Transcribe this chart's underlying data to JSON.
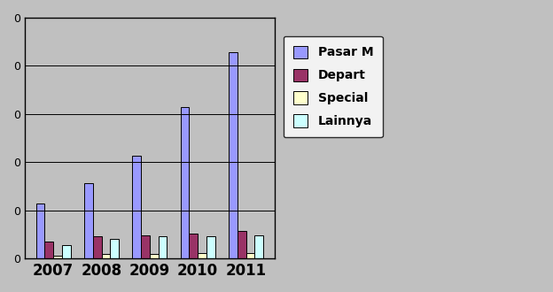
{
  "years": [
    "2007",
    "2008",
    "2009",
    "2010",
    "2011"
  ],
  "series": {
    "Pasar M": [
      40,
      55,
      75,
      110,
      150
    ],
    "Depart": [
      12,
      16,
      17,
      18,
      20
    ],
    "Special": [
      2,
      3,
      3,
      4,
      4
    ],
    "Lainnya": [
      10,
      14,
      16,
      16,
      17
    ]
  },
  "colors": {
    "Pasar M": "#9999FF",
    "Depart": "#993366",
    "Special": "#FFFFCC",
    "Lainnya": "#CCFFFF"
  },
  "bar_edge_color": "#000000",
  "background_color": "#C0C0C0",
  "plot_area_color": "#C0C0C0",
  "grid_color": "#000000",
  "bar_width": 0.18,
  "legend_labels": [
    "Pasar M",
    "Depart",
    "Special",
    "Lainnya"
  ]
}
